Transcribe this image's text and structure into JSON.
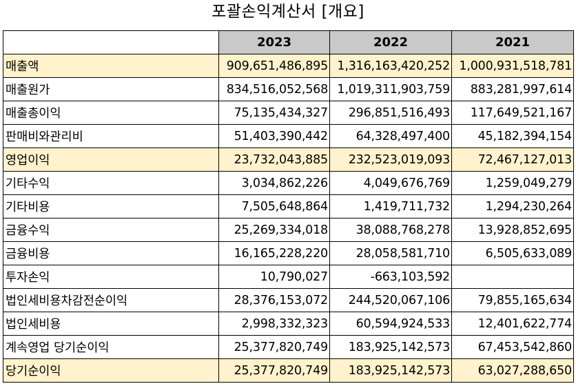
{
  "title": "포괄손익계산서 [개요]",
  "columns": [
    "2023",
    "2022",
    "2021"
  ],
  "rows": [
    {
      "label": "매출액",
      "values": [
        "909,651,486,895",
        "1,316,163,420,252",
        "1,000,931,518,781"
      ],
      "highlight": true
    },
    {
      "label": "매출원가",
      "values": [
        "834,516,052,568",
        "1,019,311,903,759",
        "883,281,997,614"
      ],
      "highlight": false
    },
    {
      "label": "매출총이익",
      "values": [
        "75,135,434,327",
        "296,851,516,493",
        "117,649,521,167"
      ],
      "highlight": false
    },
    {
      "label": "판매비와관리비",
      "values": [
        "51,403,390,442",
        "64,328,497,400",
        "45,182,394,154"
      ],
      "highlight": false
    },
    {
      "label": "영업이익",
      "values": [
        "23,732,043,885",
        "232,523,019,093",
        "72,467,127,013"
      ],
      "highlight": true
    },
    {
      "label": "기타수익",
      "values": [
        "3,034,862,226",
        "4,049,676,769",
        "1,259,049,279"
      ],
      "highlight": false
    },
    {
      "label": "기타비용",
      "values": [
        "7,505,648,864",
        "1,419,711,732",
        "1,294,230,264"
      ],
      "highlight": false
    },
    {
      "label": "금융수익",
      "values": [
        "25,269,334,018",
        "38,088,768,278",
        "13,928,852,695"
      ],
      "highlight": false
    },
    {
      "label": "금융비용",
      "values": [
        "16,165,228,220",
        "28,058,581,710",
        "6,505,633,089"
      ],
      "highlight": false
    },
    {
      "label": "투자손익",
      "values": [
        "10,790,027",
        "-663,103,592",
        ""
      ],
      "highlight": false
    },
    {
      "label": "법인세비용차감전순이익",
      "values": [
        "28,376,153,072",
        "244,520,067,106",
        "79,855,165,634"
      ],
      "highlight": false
    },
    {
      "label": "법인세비용",
      "values": [
        "2,998,332,323",
        "60,594,924,533",
        "12,401,622,774"
      ],
      "highlight": false
    },
    {
      "label": "계속영업 당기순이익",
      "values": [
        "25,377,820,749",
        "183,925,142,573",
        "67,453,542,860"
      ],
      "highlight": false
    },
    {
      "label": "당기순이익",
      "values": [
        "25,377,820,749",
        "183,925,142,573",
        "63,027,288,650"
      ],
      "highlight": true
    }
  ]
}
